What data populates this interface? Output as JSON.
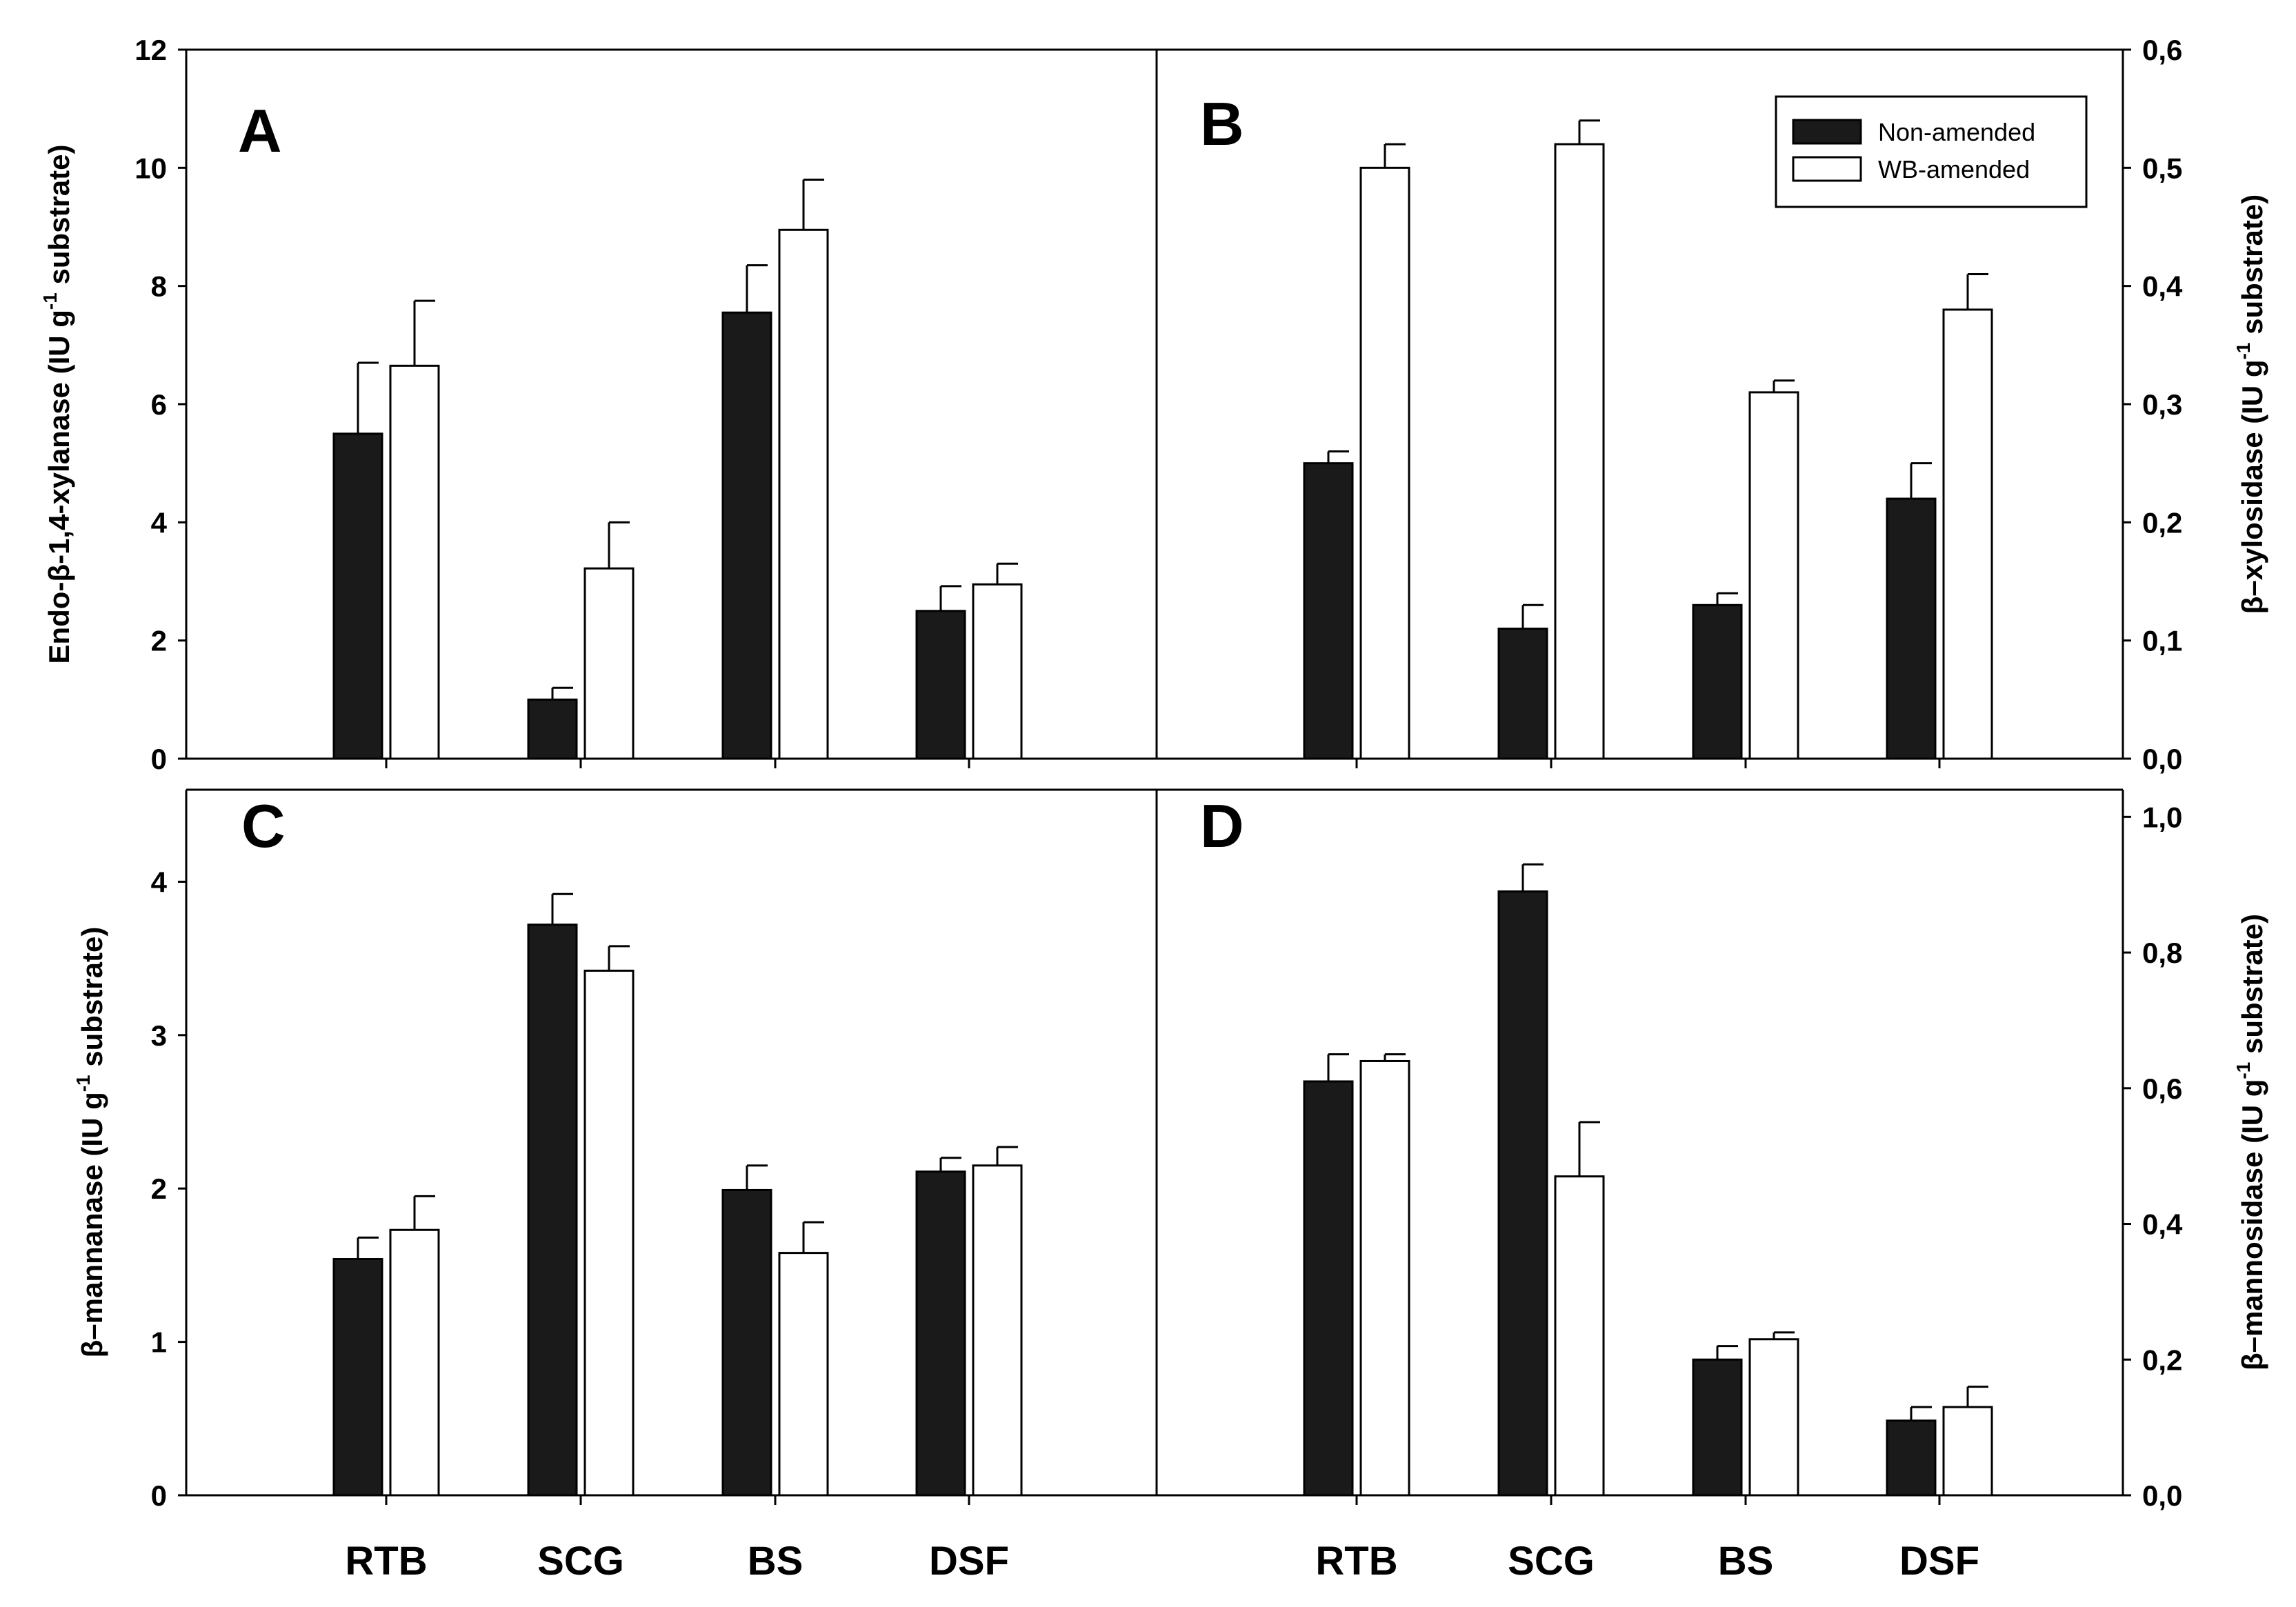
{
  "chart_data": [
    {
      "type": "bar",
      "panel": "A",
      "title": "",
      "categories": [
        "RTB",
        "SCG",
        "BS",
        "DSF"
      ],
      "series": [
        {
          "name": "Non-amended",
          "values": [
            5.5,
            1.0,
            7.55,
            2.5
          ],
          "errors": [
            1.2,
            0.2,
            0.8,
            0.42
          ]
        },
        {
          "name": "WB-amended",
          "values": [
            6.65,
            3.22,
            8.95,
            2.95
          ],
          "errors": [
            1.1,
            0.78,
            0.85,
            0.35
          ]
        }
      ],
      "ylabel": {
        "pre": "Endo-β-1,4-xylanase (IU g",
        "sup": "-1",
        "post": " substrate)"
      },
      "ylim": [
        0,
        12
      ],
      "yticks": [
        "0",
        "2",
        "4",
        "6",
        "8",
        "10",
        "12"
      ],
      "yaxis_side": "left"
    },
    {
      "type": "bar",
      "panel": "B",
      "title": "",
      "categories": [
        "RTB",
        "SCG",
        "BS",
        "DSF"
      ],
      "series": [
        {
          "name": "Non-amended",
          "values": [
            0.25,
            0.11,
            0.13,
            0.22
          ],
          "errors": [
            0.01,
            0.02,
            0.01,
            0.03
          ]
        },
        {
          "name": "WB-amended",
          "values": [
            0.5,
            0.52,
            0.31,
            0.38
          ],
          "errors": [
            0.02,
            0.02,
            0.01,
            0.03
          ]
        }
      ],
      "ylabel": {
        "pre": "β–xylosidase (IU g",
        "sup": "-1",
        "post": " substrate)"
      },
      "ylim": [
        0,
        0.6
      ],
      "yticks": [
        "0,0",
        "0,1",
        "0,2",
        "0,3",
        "0,4",
        "0,5",
        "0,6"
      ],
      "yaxis_side": "right"
    },
    {
      "type": "bar",
      "panel": "C",
      "title": "",
      "categories": [
        "RTB",
        "SCG",
        "BS",
        "DSF"
      ],
      "series": [
        {
          "name": "Non-amended",
          "values": [
            1.54,
            3.72,
            1.99,
            2.11
          ],
          "errors": [
            0.14,
            0.2,
            0.16,
            0.09
          ]
        },
        {
          "name": "WB-amended",
          "values": [
            1.73,
            3.42,
            1.58,
            2.15
          ],
          "errors": [
            0.22,
            0.16,
            0.2,
            0.12
          ]
        }
      ],
      "ylabel": {
        "pre": "β–mannanase (IU g",
        "sup": "-1",
        "post": " substrate)"
      },
      "ylim": [
        0,
        4.6
      ],
      "yticks": [
        "0",
        "1",
        "2",
        "3",
        "4"
      ],
      "yaxis_side": "left"
    },
    {
      "type": "bar",
      "panel": "D",
      "title": "",
      "categories": [
        "RTB",
        "SCG",
        "BS",
        "DSF"
      ],
      "series": [
        {
          "name": "Non-amended",
          "values": [
            0.61,
            0.89,
            0.2,
            0.11
          ],
          "errors": [
            0.04,
            0.04,
            0.02,
            0.02
          ]
        },
        {
          "name": "WB-amended",
          "values": [
            0.64,
            0.47,
            0.23,
            0.13
          ],
          "errors": [
            0.01,
            0.08,
            0.01,
            0.03
          ]
        }
      ],
      "ylabel": {
        "pre": "β–mannosidase (IU g",
        "sup": "-1",
        "post": " substrate)"
      },
      "ylim": [
        0,
        1.04
      ],
      "yticks": [
        "0,0",
        "0,2",
        "0,4",
        "0,6",
        "0,8",
        "1,0"
      ],
      "yaxis_side": "right"
    }
  ],
  "legend": {
    "items": [
      {
        "label": "Non-amended",
        "color": "#1a1a1a"
      },
      {
        "label": "WB-amended",
        "color": "#ffffff"
      }
    ],
    "position": "top-right"
  },
  "colors": {
    "non_amended": "#1a1a1a",
    "wb_amended": "#ffffff",
    "axis": "#000000"
  }
}
